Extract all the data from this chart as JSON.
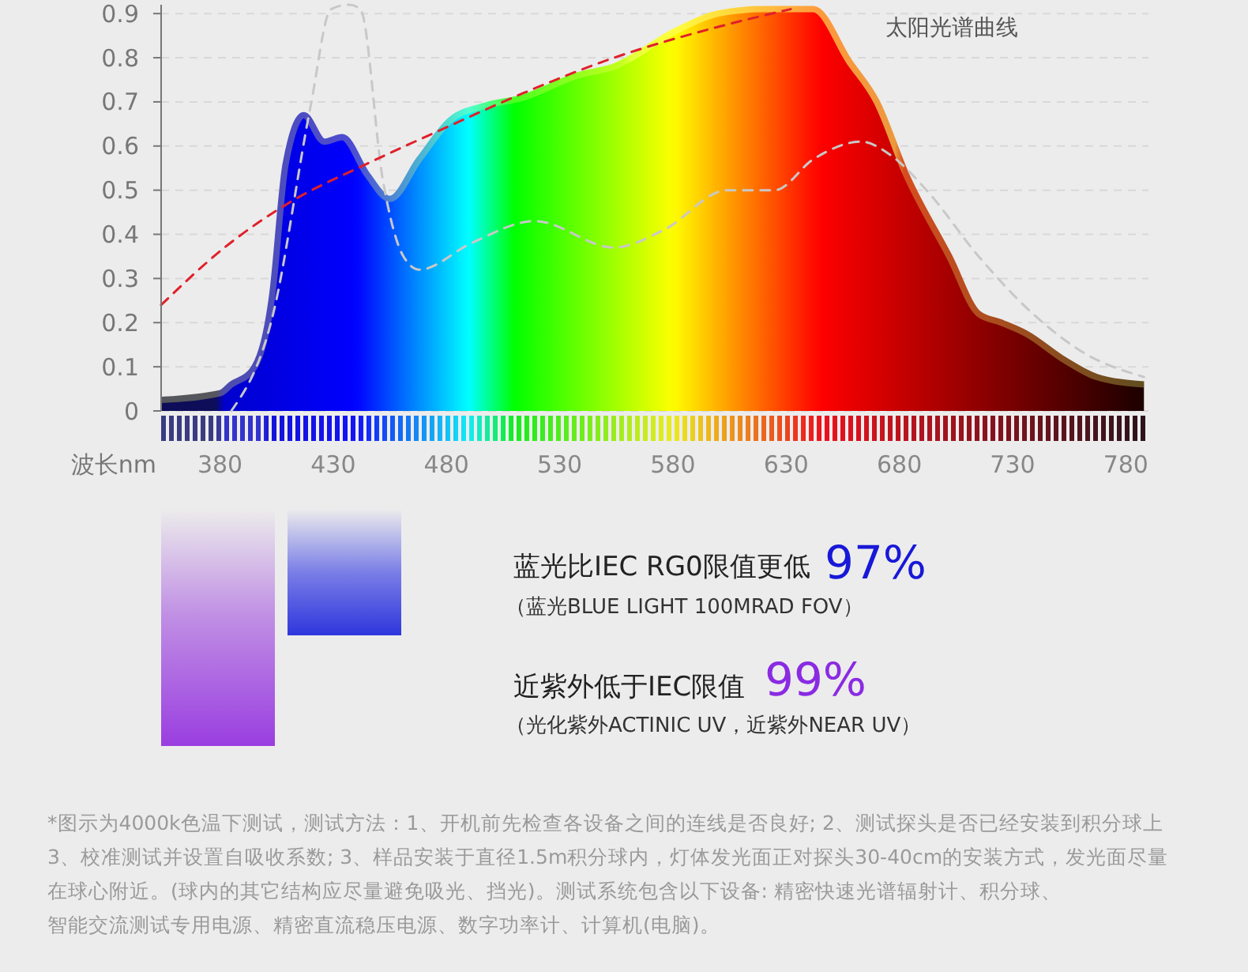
{
  "chart_data": {
    "type": "area",
    "xlabel": "波长nm",
    "xlim": [
      354,
      790
    ],
    "xticks": [
      380,
      430,
      480,
      530,
      580,
      630,
      680,
      730,
      780
    ],
    "ylim": [
      0,
      0.92
    ],
    "yticks": [
      0,
      0.1,
      0.2,
      0.3,
      0.4,
      0.5,
      0.6,
      0.7,
      0.8,
      0.9
    ],
    "grid": "y",
    "series": [
      {
        "x": [
          354,
          380,
          385,
          394,
          403,
          409,
          417,
          426,
          434,
          445,
          455,
          468,
          482,
          496,
          514,
          538,
          554,
          581,
          600,
          620,
          642,
          658,
          670,
          683,
          702,
          715,
          725,
          736,
          753,
          767,
          788
        ],
        "values": [
          0.025,
          0.04,
          0.06,
          0.09,
          0.26,
          0.56,
          0.67,
          0.61,
          0.62,
          0.535,
          0.48,
          0.57,
          0.66,
          0.69,
          0.71,
          0.76,
          0.78,
          0.86,
          0.9,
          0.91,
          0.91,
          0.79,
          0.7,
          0.535,
          0.35,
          0.22,
          0.2,
          0.175,
          0.115,
          0.077,
          0.06
        ]
      },
      {
        "type": "line",
        "color": "#c8c8c8",
        "line_style": "dashed",
        "x": [
          385,
          403,
          420,
          429,
          437,
          442,
          452,
          461,
          468,
          491,
          519,
          554,
          576,
          604,
          625,
          642,
          663,
          676,
          692,
          715,
          739,
          762,
          788
        ],
        "values": [
          0,
          0.21,
          0.69,
          0.91,
          0.92,
          0.91,
          0.52,
          0.35,
          0.32,
          0.38,
          0.43,
          0.37,
          0.41,
          0.5,
          0.5,
          0.57,
          0.61,
          0.58,
          0.5,
          0.35,
          0.22,
          0.13,
          0.077
        ]
      },
      {
        "type": "line",
        "name": "太阳光谱曲线",
        "color": "#e0202a",
        "line_style": "dashed",
        "x": [
          354,
          382,
          410,
          445,
          479,
          514,
          554,
          600,
          632
        ],
        "values": [
          0.24,
          0.37,
          0.47,
          0.56,
          0.64,
          0.72,
          0.8,
          0.87,
          0.91
        ]
      }
    ],
    "annotations": [
      "蓝光比IEC RG0限值更低",
      "97%",
      "（蓝光BLUE LIGHT 100MRAD FOV）",
      "近紫外低于IEC限值",
      "99%",
      "（光化紫外ACTINIC UV，近紫外NEAR UV）",
      "*图示为4000k色温下测试，测试方法：1、开机前先检查各设备之间的连线是否良好; 2、测试探头是否已经安装到积分球上",
      "3、校准测试并设置自吸收系数; 3、样品安装于直径1.5m积分球内，灯体发光面正对探头30-40cm的安装方式，发光面尽量",
      "在球心附近。(球内的其它结构应尽量避免吸光、挡光)。测试系统包含以下设备: 精密快速光谱辐射计、积分球、",
      "智能交流测试专用电源、精密直流稳压电源、数字功率计、计算机(电脑)。"
    ]
  }
}
